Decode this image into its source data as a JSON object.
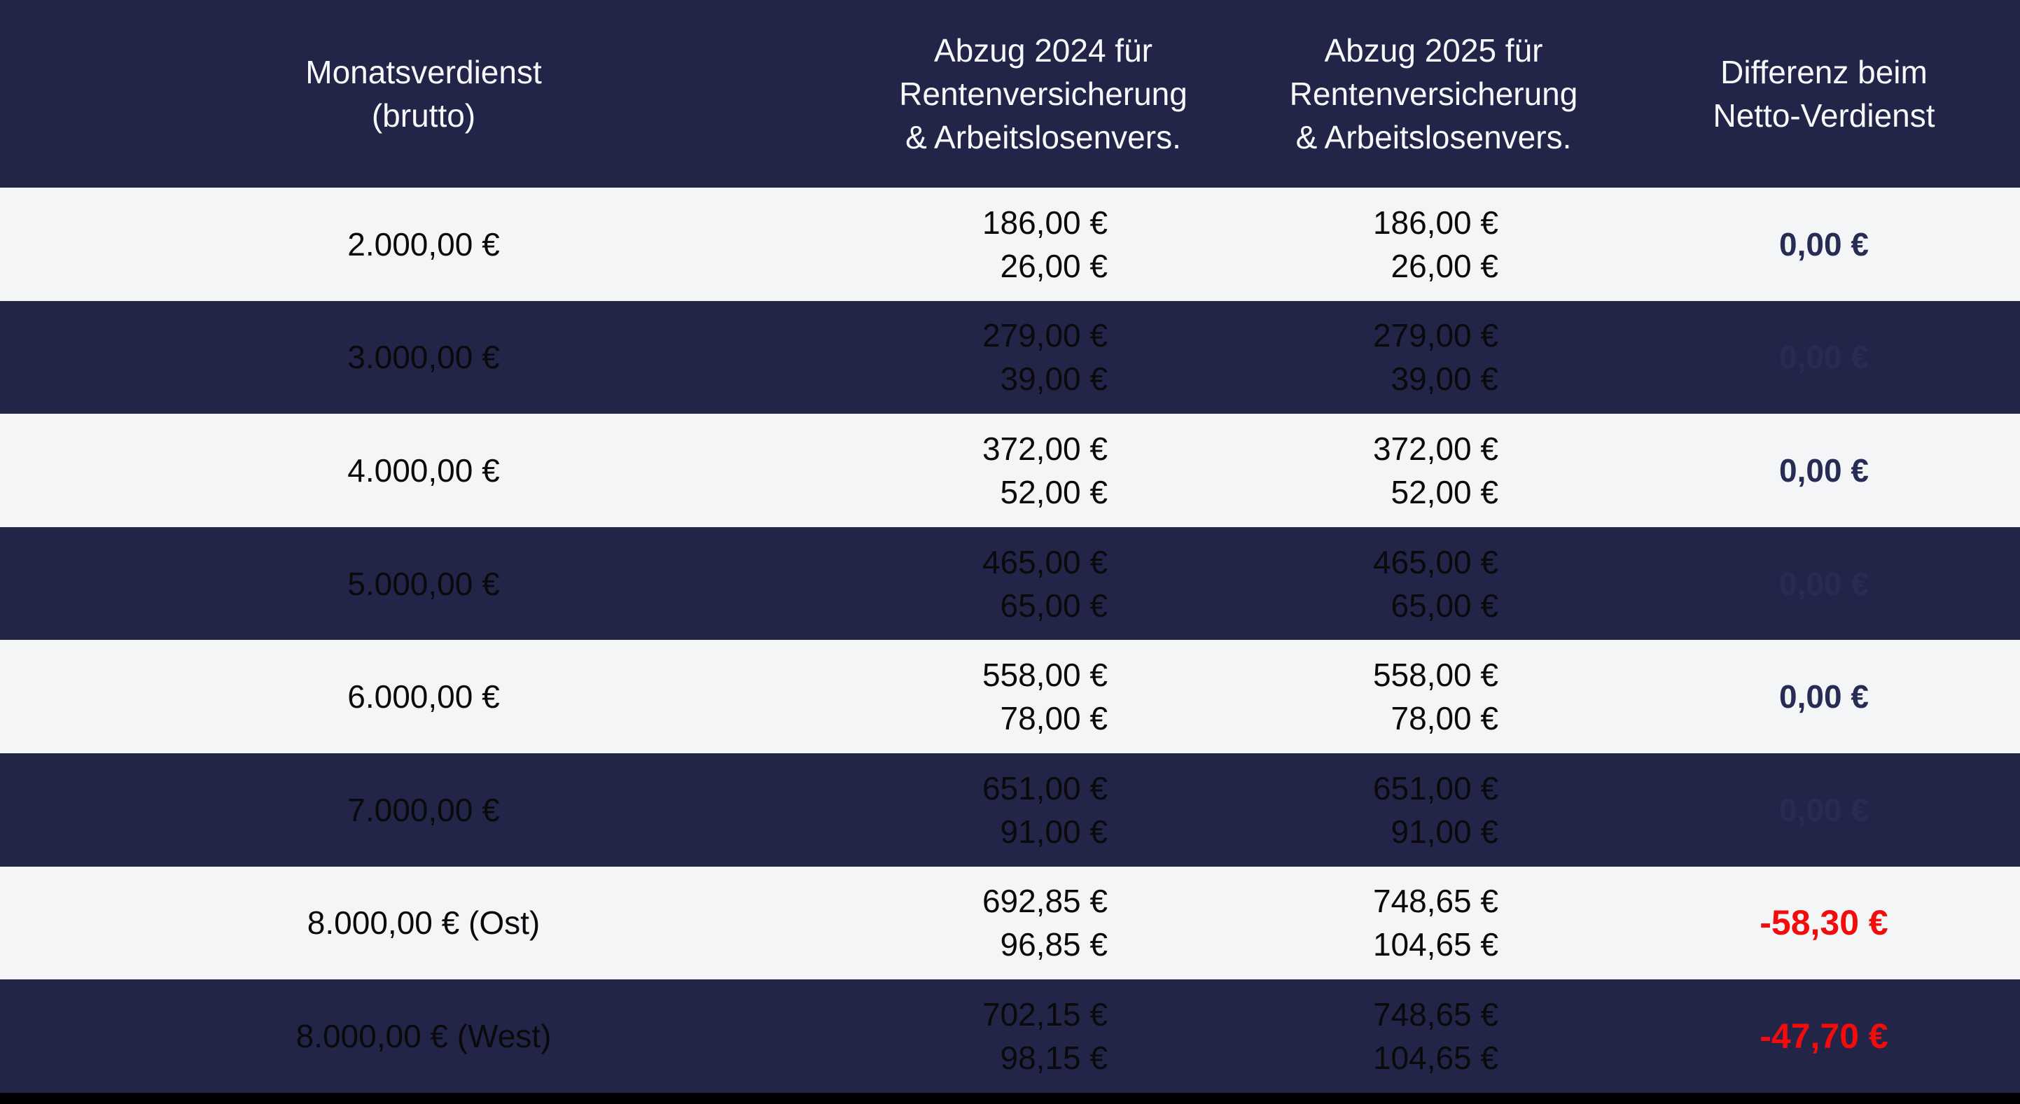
{
  "table": {
    "header": {
      "col1": {
        "lines": [
          "Monatsverdienst",
          "(brutto)"
        ]
      },
      "col2": {
        "lines": [
          "Abzug 2024 für",
          "Rentenversicherung",
          "& Arbeitslosenvers."
        ]
      },
      "col3": {
        "lines": [
          "Abzug 2025 für",
          "Rentenversicherung",
          "& Arbeitslosenvers."
        ]
      },
      "col4": {
        "lines": [
          "Differenz beim",
          "Netto-Verdienst"
        ]
      }
    },
    "rows": [
      {
        "gross": "2.000,00 €",
        "d2024": [
          "186,00 €",
          "26,00 €"
        ],
        "d2025": [
          "186,00 €",
          "26,00 €"
        ],
        "diff": "0,00 €"
      },
      {
        "gross": "3.000,00 €",
        "d2024": [
          "279,00 €",
          "39,00 €"
        ],
        "d2025": [
          "279,00 €",
          "39,00 €"
        ],
        "diff": "0,00 €"
      },
      {
        "gross": "4.000,00 €",
        "d2024": [
          "372,00 €",
          "52,00 €"
        ],
        "d2025": [
          "372,00 €",
          "52,00 €"
        ],
        "diff": "0,00 €"
      },
      {
        "gross": "5.000,00 €",
        "d2024": [
          "465,00 €",
          "65,00 €"
        ],
        "d2025": [
          "465,00 €",
          "65,00 €"
        ],
        "diff": "0,00 €"
      },
      {
        "gross": "6.000,00 €",
        "d2024": [
          "558,00 €",
          "78,00 €"
        ],
        "d2025": [
          "558,00 €",
          "78,00 €"
        ],
        "diff": "0,00 €"
      },
      {
        "gross": "7.000,00 €",
        "d2024": [
          "651,00 €",
          "91,00 €"
        ],
        "d2025": [
          "651,00 €",
          "91,00 €"
        ],
        "diff": "0,00 €"
      },
      {
        "gross": "8.000,00 € (Ost)",
        "d2024": [
          "692,85 €",
          "96,85 €"
        ],
        "d2025": [
          "748,65 €",
          "104,65 €"
        ],
        "diff": "-58,30 €"
      },
      {
        "gross": "8.000,00 € (West)",
        "d2024": [
          "702,15 €",
          "98,15 €"
        ],
        "d2025": [
          "748,65 €",
          "104,65 €"
        ],
        "diff": "-47,70 €"
      }
    ]
  },
  "chart_data": {
    "type": "table",
    "columns": [
      "Monatsverdienst (brutto)",
      "Abzug 2024 für Rentenversicherung & Arbeitslosenvers.",
      "Abzug 2025 für Rentenversicherung & Arbeitslosenvers.",
      "Differenz beim Netto-Verdienst"
    ],
    "rows": [
      [
        "2.000,00 €",
        "186,00 € / 26,00 €",
        "186,00 € / 26,00 €",
        "0,00 €"
      ],
      [
        "3.000,00 €",
        "279,00 € / 39,00 €",
        "279,00 € / 39,00 €",
        "0,00 €"
      ],
      [
        "4.000,00 €",
        "372,00 € / 52,00 €",
        "372,00 € / 52,00 €",
        "0,00 €"
      ],
      [
        "5.000,00 €",
        "465,00 € / 65,00 €",
        "465,00 € / 65,00 €",
        "0,00 €"
      ],
      [
        "6.000,00 €",
        "558,00 € / 78,00 €",
        "558,00 € / 78,00 €",
        "0,00 €"
      ],
      [
        "7.000,00 €",
        "651,00 € / 91,00 €",
        "651,00 € / 91,00 €",
        "0,00 €"
      ],
      [
        "8.000,00 € (Ost)",
        "692,85 € / 96,85 €",
        "748,65 € / 104,65 €",
        "-58,30 €"
      ],
      [
        "8.000,00 € (West)",
        "702,15 € / 98,15 €",
        "748,65 € / 104,65 €",
        "-47,70 €"
      ]
    ],
    "layout": "alternating row shading dark-navy / light; negative differences shown in red bold, zero differences in dark-navy bold"
  },
  "colors": {
    "dark_navy_bg": "#222548",
    "light_row_bg": "#f3f5f7",
    "header_text": "#f7f8fa",
    "cell_text": "#0a0a0c",
    "diff_navy": "#272c55",
    "diff_red": "#f20d0d",
    "bottom_bar": "#000000"
  }
}
